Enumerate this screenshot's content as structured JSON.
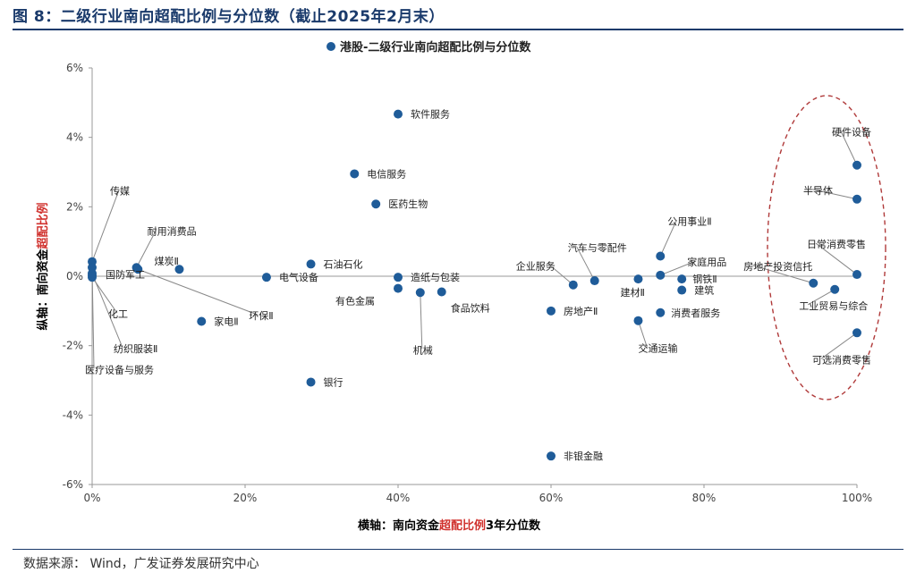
{
  "figure": {
    "title": "图 8：二级行业南向超配比例与分位数（截止2025年2月末）",
    "source_label": "数据来源：",
    "source_text": "Wind，广发证券发展研究中心"
  },
  "colors": {
    "point": "#1f5c99",
    "highlight": "#d0312d",
    "title_blue": "#1a3a6b",
    "ellipse": "#b03a3a"
  },
  "chart_data": {
    "type": "scatter",
    "legend": "港股-二级行业南向超配比例与分位数",
    "xlabel_parts": [
      "横轴：南向资金",
      "超配比例",
      "3年分位数"
    ],
    "ylabel_parts": [
      "纵轴：南向资金",
      "超配比例"
    ],
    "xlim": [
      0,
      1
    ],
    "ylim": [
      -0.06,
      0.06
    ],
    "x_ticks": [
      {
        "v": 0,
        "label": "0%"
      },
      {
        "v": 0.2,
        "label": "20%"
      },
      {
        "v": 0.4,
        "label": "40%"
      },
      {
        "v": 0.6,
        "label": "60%"
      },
      {
        "v": 0.8,
        "label": "80%"
      },
      {
        "v": 1.0,
        "label": "100%"
      }
    ],
    "y_ticks": [
      {
        "v": 0.06,
        "label": "6%"
      },
      {
        "v": 0.04,
        "label": "4%"
      },
      {
        "v": 0.02,
        "label": "2%"
      },
      {
        "v": 0,
        "label": "0%"
      },
      {
        "v": -0.02,
        "label": "-2%"
      },
      {
        "v": -0.04,
        "label": "-4%"
      },
      {
        "v": -0.06,
        "label": "-6%"
      }
    ],
    "points": [
      {
        "name": "传媒",
        "x": 0.0,
        "y": 0.0042
      },
      {
        "name": "国防军工",
        "x": 0.0,
        "y": 0.0002
      },
      {
        "name": "化工",
        "x": 0.0,
        "y": -0.0003
      },
      {
        "name": "纺织服装Ⅱ",
        "x": 0.0,
        "y": 0.0008
      },
      {
        "name": "医疗设备与服务",
        "x": 0.0,
        "y": 0.0025
      },
      {
        "name": "耐用消费品",
        "x": 0.058,
        "y": 0.0025
      },
      {
        "name": "煤炭Ⅱ",
        "x": 0.114,
        "y": 0.002
      },
      {
        "name": "家电Ⅱ",
        "x": 0.143,
        "y": -0.013
      },
      {
        "name": "环保Ⅱ",
        "x": 0.06,
        "y": 0.002
      },
      {
        "name": "电气设备",
        "x": 0.228,
        "y": -0.0003
      },
      {
        "name": "石油石化",
        "x": 0.286,
        "y": 0.0035
      },
      {
        "name": "银行",
        "x": 0.286,
        "y": -0.0305
      },
      {
        "name": "电信服务",
        "x": 0.343,
        "y": 0.0295
      },
      {
        "name": "医药生物",
        "x": 0.371,
        "y": 0.0208
      },
      {
        "name": "软件服务",
        "x": 0.4,
        "y": 0.0467
      },
      {
        "name": "造纸与包装",
        "x": 0.4,
        "y": -0.0003
      },
      {
        "name": "有色金属",
        "x": 0.4,
        "y": -0.0035
      },
      {
        "name": "机械",
        "x": 0.429,
        "y": -0.0047
      },
      {
        "name": "食品饮料",
        "x": 0.457,
        "y": -0.0045
      },
      {
        "name": "房地产Ⅱ",
        "x": 0.6,
        "y": -0.01
      },
      {
        "name": "非银金融",
        "x": 0.6,
        "y": -0.0518
      },
      {
        "name": "企业服务",
        "x": 0.629,
        "y": -0.0025
      },
      {
        "name": "汽车与零配件",
        "x": 0.657,
        "y": -0.0013
      },
      {
        "name": "建材Ⅱ",
        "x": 0.714,
        "y": -0.0008
      },
      {
        "name": "交通运输",
        "x": 0.714,
        "y": -0.0128
      },
      {
        "name": "公用事业Ⅱ",
        "x": 0.743,
        "y": 0.0058
      },
      {
        "name": "家庭用品",
        "x": 0.743,
        "y": 0.0003
      },
      {
        "name": "消费者服务",
        "x": 0.743,
        "y": -0.0105
      },
      {
        "name": "钢铁Ⅱ",
        "x": 0.771,
        "y": -0.0008
      },
      {
        "name": "建筑",
        "x": 0.771,
        "y": -0.004
      },
      {
        "name": "房地产投资信托",
        "x": 0.943,
        "y": -0.002
      },
      {
        "name": "工业贸易与综合",
        "x": 0.971,
        "y": -0.0038
      },
      {
        "name": "硬件设备",
        "x": 1.0,
        "y": 0.032
      },
      {
        "name": "半导体",
        "x": 1.0,
        "y": 0.0222
      },
      {
        "name": "日常消费零售",
        "x": 1.0,
        "y": 0.0005
      },
      {
        "name": "可选消费零售",
        "x": 1.0,
        "y": -0.0163
      }
    ]
  }
}
